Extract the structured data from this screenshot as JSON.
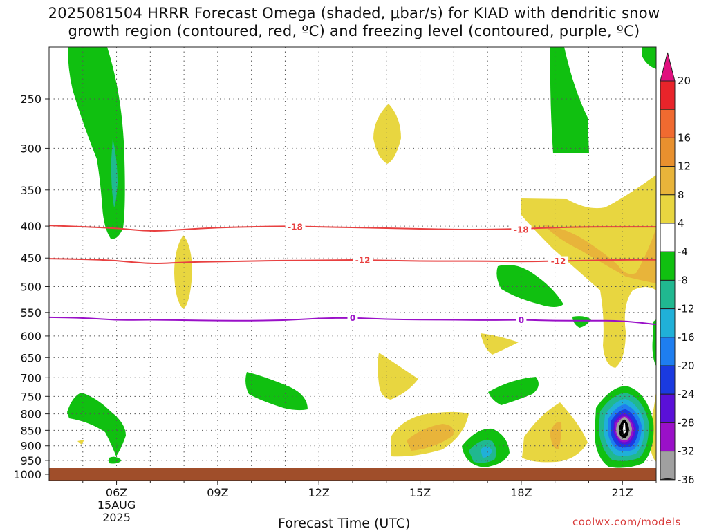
{
  "title": {
    "line1": "2025081504 HRRR Forecast Omega (shaded, μbar/s) for KIAD with dendritic snow",
    "line2": "growth region (contoured, red, ºC) and freezing level (contoured, purple, ºC)"
  },
  "chart_data": {
    "type": "contour",
    "xlabel": "Forecast Time (UTC)",
    "x_ticks": [
      {
        "hour": 6,
        "label": "06Z",
        "sub": [
          "15AUG",
          "2025"
        ]
      },
      {
        "hour": 9,
        "label": "09Z"
      },
      {
        "hour": 12,
        "label": "12Z"
      },
      {
        "hour": 15,
        "label": "15Z"
      },
      {
        "hour": 18,
        "label": "18Z"
      },
      {
        "hour": 21,
        "label": "21Z"
      }
    ],
    "xlim": [
      4.0,
      22.0
    ],
    "y_ticks": [
      250,
      300,
      350,
      400,
      450,
      500,
      550,
      600,
      650,
      700,
      750,
      800,
      850,
      900,
      950,
      1000
    ],
    "ylim_hPa": [
      200,
      1000
    ],
    "y_scale": "log pressure",
    "grid": true,
    "colorbar": {
      "ticks": [
        "20",
        "16",
        "12",
        "8",
        "4",
        "-4",
        "-8",
        "-12",
        "-16",
        "-20",
        "-24",
        "-28",
        "-32",
        "-36"
      ],
      "colors": [
        "#e8242a",
        "#f06a30",
        "#e8902e",
        "#e8b43a",
        "#e8d640",
        "#ffffff",
        "#10c010",
        "#20b890",
        "#20b0d8",
        "#1e7ef0",
        "#1a3ae0",
        "#5a10d8",
        "#9a10c8",
        "#a0a0a0"
      ],
      "top_color": "#e0107e",
      "bottom_color": "#000000"
    },
    "contours": [
      {
        "name": "dendritic",
        "label": "-18",
        "color": "#e84040",
        "points": [
          [
            4.0,
            399
          ],
          [
            5.0,
            401
          ],
          [
            6.0,
            403
          ],
          [
            7.0,
            408
          ],
          [
            8.0,
            405
          ],
          [
            9.0,
            402
          ],
          [
            10.0,
            401
          ],
          [
            11.0,
            400
          ],
          [
            12.0,
            401
          ],
          [
            13.0,
            402
          ],
          [
            14.0,
            403
          ],
          [
            15.0,
            404
          ],
          [
            16.0,
            405
          ],
          [
            17.0,
            405
          ],
          [
            18.0,
            404
          ],
          [
            19.0,
            402
          ],
          [
            20.0,
            401
          ],
          [
            21.0,
            401
          ],
          [
            22.0,
            401
          ]
        ],
        "label_at": [
          [
            11.3,
            401
          ],
          [
            18.0,
            405
          ]
        ]
      },
      {
        "name": "dendritic",
        "label": "-12",
        "color": "#e84040",
        "points": [
          [
            4.0,
            451
          ],
          [
            5.0,
            452
          ],
          [
            6.0,
            454
          ],
          [
            7.0,
            460
          ],
          [
            8.0,
            457
          ],
          [
            9.0,
            456
          ],
          [
            10.0,
            455
          ],
          [
            11.0,
            454
          ],
          [
            12.0,
            454
          ],
          [
            13.0,
            453
          ],
          [
            14.0,
            454
          ],
          [
            15.0,
            455
          ],
          [
            16.0,
            455
          ],
          [
            17.0,
            455
          ],
          [
            18.0,
            456
          ],
          [
            19.0,
            455
          ],
          [
            20.0,
            454
          ],
          [
            21.0,
            453
          ],
          [
            22.0,
            453
          ]
        ],
        "label_at": [
          [
            13.3,
            453
          ],
          [
            19.1,
            455
          ]
        ]
      },
      {
        "name": "freezing",
        "label": "0",
        "color": "#9a10c8",
        "points": [
          [
            4.0,
            560
          ],
          [
            5.0,
            561
          ],
          [
            6.0,
            566
          ],
          [
            7.0,
            565
          ],
          [
            8.0,
            566
          ],
          [
            9.0,
            567
          ],
          [
            10.0,
            567
          ],
          [
            11.0,
            566
          ],
          [
            12.0,
            562
          ],
          [
            13.0,
            561
          ],
          [
            14.0,
            564
          ],
          [
            15.0,
            565
          ],
          [
            16.0,
            565
          ],
          [
            17.0,
            566
          ],
          [
            18.0,
            565
          ],
          [
            19.0,
            567
          ],
          [
            20.0,
            567
          ],
          [
            21.0,
            567
          ],
          [
            22.0,
            575
          ]
        ],
        "label_at": [
          [
            13.0,
            561
          ],
          [
            18.0,
            565
          ]
        ]
      }
    ],
    "contour_label_color_red": "#e84040",
    "contour_label_color_purple": "#9a10c8"
  },
  "footer": {
    "credit": "coolwx.com/models"
  }
}
